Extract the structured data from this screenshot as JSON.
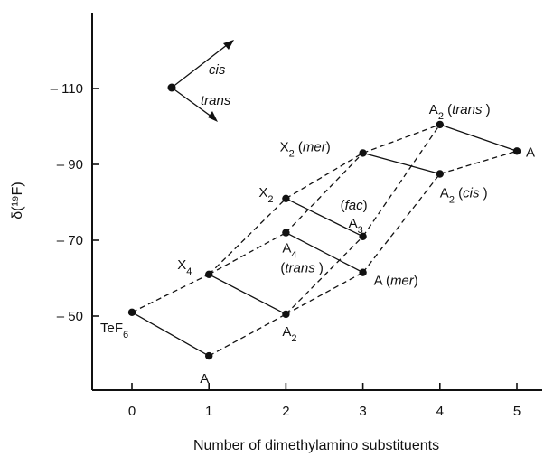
{
  "chart_data": {
    "type": "line",
    "xlabel": "Number of dimethylamino substituents",
    "ylabel": "δ(¹⁹F)",
    "xlim": [
      -0.6,
      5.4
    ],
    "ylim": [
      -43,
      -127
    ],
    "x_ticks": [
      0,
      1,
      2,
      3,
      4,
      5
    ],
    "y_ticks": [
      -110,
      -90,
      -70,
      -50
    ],
    "x_tick_labels": [
      "0",
      "1",
      "2",
      "3",
      "4",
      "5"
    ],
    "y_tick_labels": [
      "– 110",
      "– 90",
      "– 70",
      "– 50"
    ],
    "points": [
      {
        "id": "p0",
        "x": 0,
        "y": -51,
        "label": "TeF6"
      },
      {
        "id": "p1a",
        "x": 1,
        "y": -39.5,
        "label": "A"
      },
      {
        "id": "p1x",
        "x": 1,
        "y": -61,
        "label": "X4"
      },
      {
        "id": "p2a2",
        "x": 2,
        "y": -50.5,
        "label": "A2"
      },
      {
        "id": "p2a4",
        "x": 2,
        "y": -72,
        "label": "A4 (trans)"
      },
      {
        "id": "p2x2",
        "x": 2,
        "y": -81,
        "label": "X2"
      },
      {
        "id": "p3amer",
        "x": 3,
        "y": -61.5,
        "label": "A (mer)"
      },
      {
        "id": "p3a3",
        "x": 3,
        "y": -71,
        "label": "(fac) A3"
      },
      {
        "id": "p3x2",
        "x": 3,
        "y": -93,
        "label": "X2 (mer)"
      },
      {
        "id": "p4cis",
        "x": 4,
        "y": -87.5,
        "label": "A2 (cis)"
      },
      {
        "id": "p4trans",
        "x": 4,
        "y": -100.5,
        "label": "A2 (trans)"
      },
      {
        "id": "p5",
        "x": 5,
        "y": -93.5,
        "label": "A"
      }
    ],
    "solid_segments": [
      [
        "p0",
        "p1a"
      ],
      [
        "p1x",
        "p2a2"
      ],
      [
        "p2a4",
        "p3amer"
      ],
      [
        "p2x2",
        "p3a3"
      ],
      [
        "p3x2",
        "p4cis"
      ],
      [
        "p4trans",
        "p5"
      ]
    ],
    "dashed_segments": [
      [
        "p0",
        "p1x"
      ],
      [
        "p1a",
        "p2a2"
      ],
      [
        "p1x",
        "p2x2"
      ],
      [
        "p1x",
        "p2a4"
      ],
      [
        "p2a2",
        "p3amer"
      ],
      [
        "p2a2",
        "p3a3"
      ],
      [
        "p2x2",
        "p3x2"
      ],
      [
        "p2a4",
        "p3x2"
      ],
      [
        "p3amer",
        "p4cis"
      ],
      [
        "p3a3",
        "p4trans"
      ],
      [
        "p3x2",
        "p4trans"
      ],
      [
        "p4cis",
        "p5"
      ]
    ],
    "legend": {
      "cis_label": "cis",
      "trans_label": "trans",
      "origin": {
        "x": 0.55,
        "y": -111
      }
    }
  }
}
